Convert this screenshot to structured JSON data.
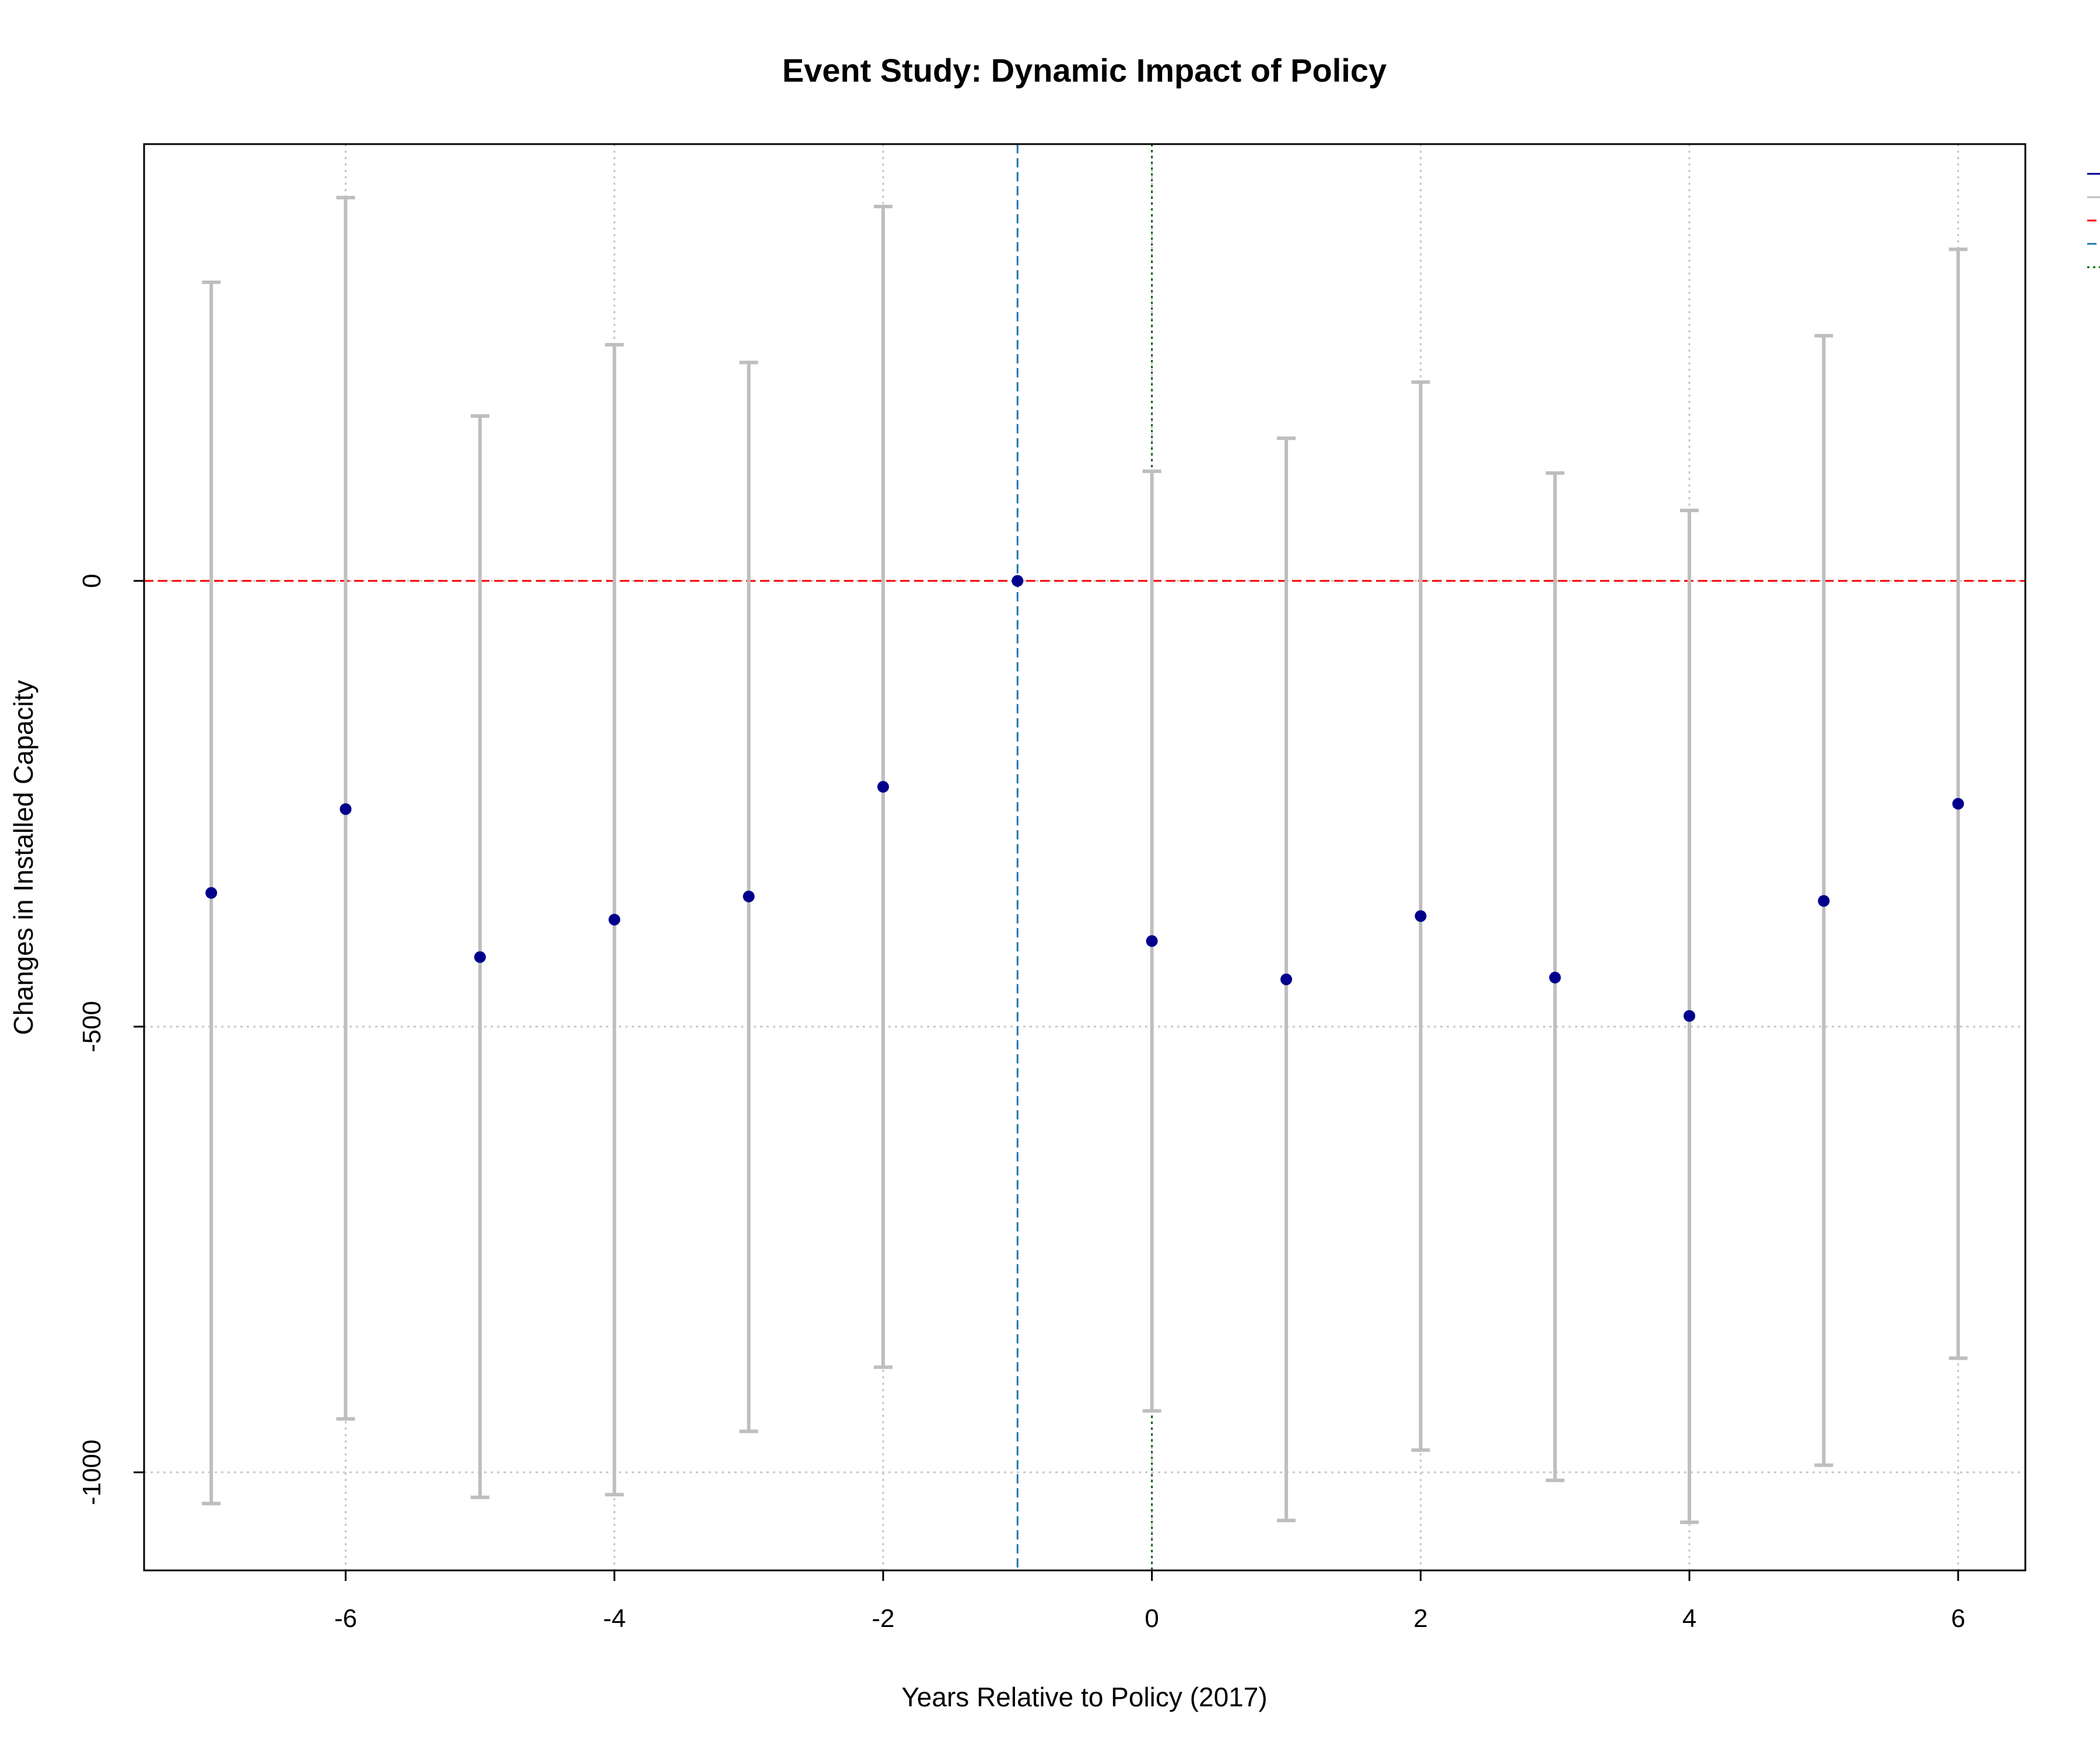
{
  "chart_data": {
    "type": "scatter",
    "title": "Event Study: Dynamic Impact of Policy",
    "xlabel": "Years Relative to Policy (2017)",
    "ylabel": "Changes in Installed Capacity",
    "x_ticks": [
      -6,
      -4,
      -2,
      0,
      2,
      4,
      6
    ],
    "y_ticks": [
      0,
      -500,
      -1000
    ],
    "xlim": [
      -7.5,
      6.5
    ],
    "ylim": [
      -1110,
      490
    ],
    "grid": true,
    "legend_placement": "top-right",
    "series": [
      {
        "x": [
          -7,
          -6,
          -5,
          -4,
          -3,
          -2,
          -1,
          0,
          1,
          2,
          3,
          4,
          5,
          6
        ],
        "estimate": [
          -350,
          -256,
          -422,
          -380,
          -354,
          -231,
          0,
          -404,
          -447,
          -376,
          -445,
          -488,
          -359,
          -250
        ],
        "ci_low": [
          -1035,
          -940,
          -1028,
          -1025,
          -954,
          -882,
          0,
          -931,
          -1054,
          -975,
          -1009,
          -1056,
          -992,
          -872
        ],
        "ci_high": [
          335,
          430,
          185,
          265,
          245,
          420,
          0,
          123,
          160,
          223,
          121,
          79,
          275,
          372
        ],
        "point_color": "#00008b",
        "ci_color": "#bebebe"
      }
    ],
    "reference_lines": [
      {
        "orientation": "horizontal",
        "value": 0,
        "style": "dashed",
        "color": "#ff0000"
      },
      {
        "orientation": "vertical",
        "value": -1,
        "style": "dashed",
        "color": "#1f78b4"
      },
      {
        "orientation": "vertical",
        "value": 0,
        "style": "dotted",
        "color": "#006400"
      }
    ],
    "legend_entries": [
      {
        "color": "#00008b",
        "style": "solid"
      },
      {
        "color": "#bebebe",
        "style": "solid"
      },
      {
        "color": "#ff0000",
        "style": "dashed"
      },
      {
        "color": "#1f78b4",
        "style": "dashed"
      },
      {
        "color": "#006400",
        "style": "dotted"
      }
    ]
  }
}
